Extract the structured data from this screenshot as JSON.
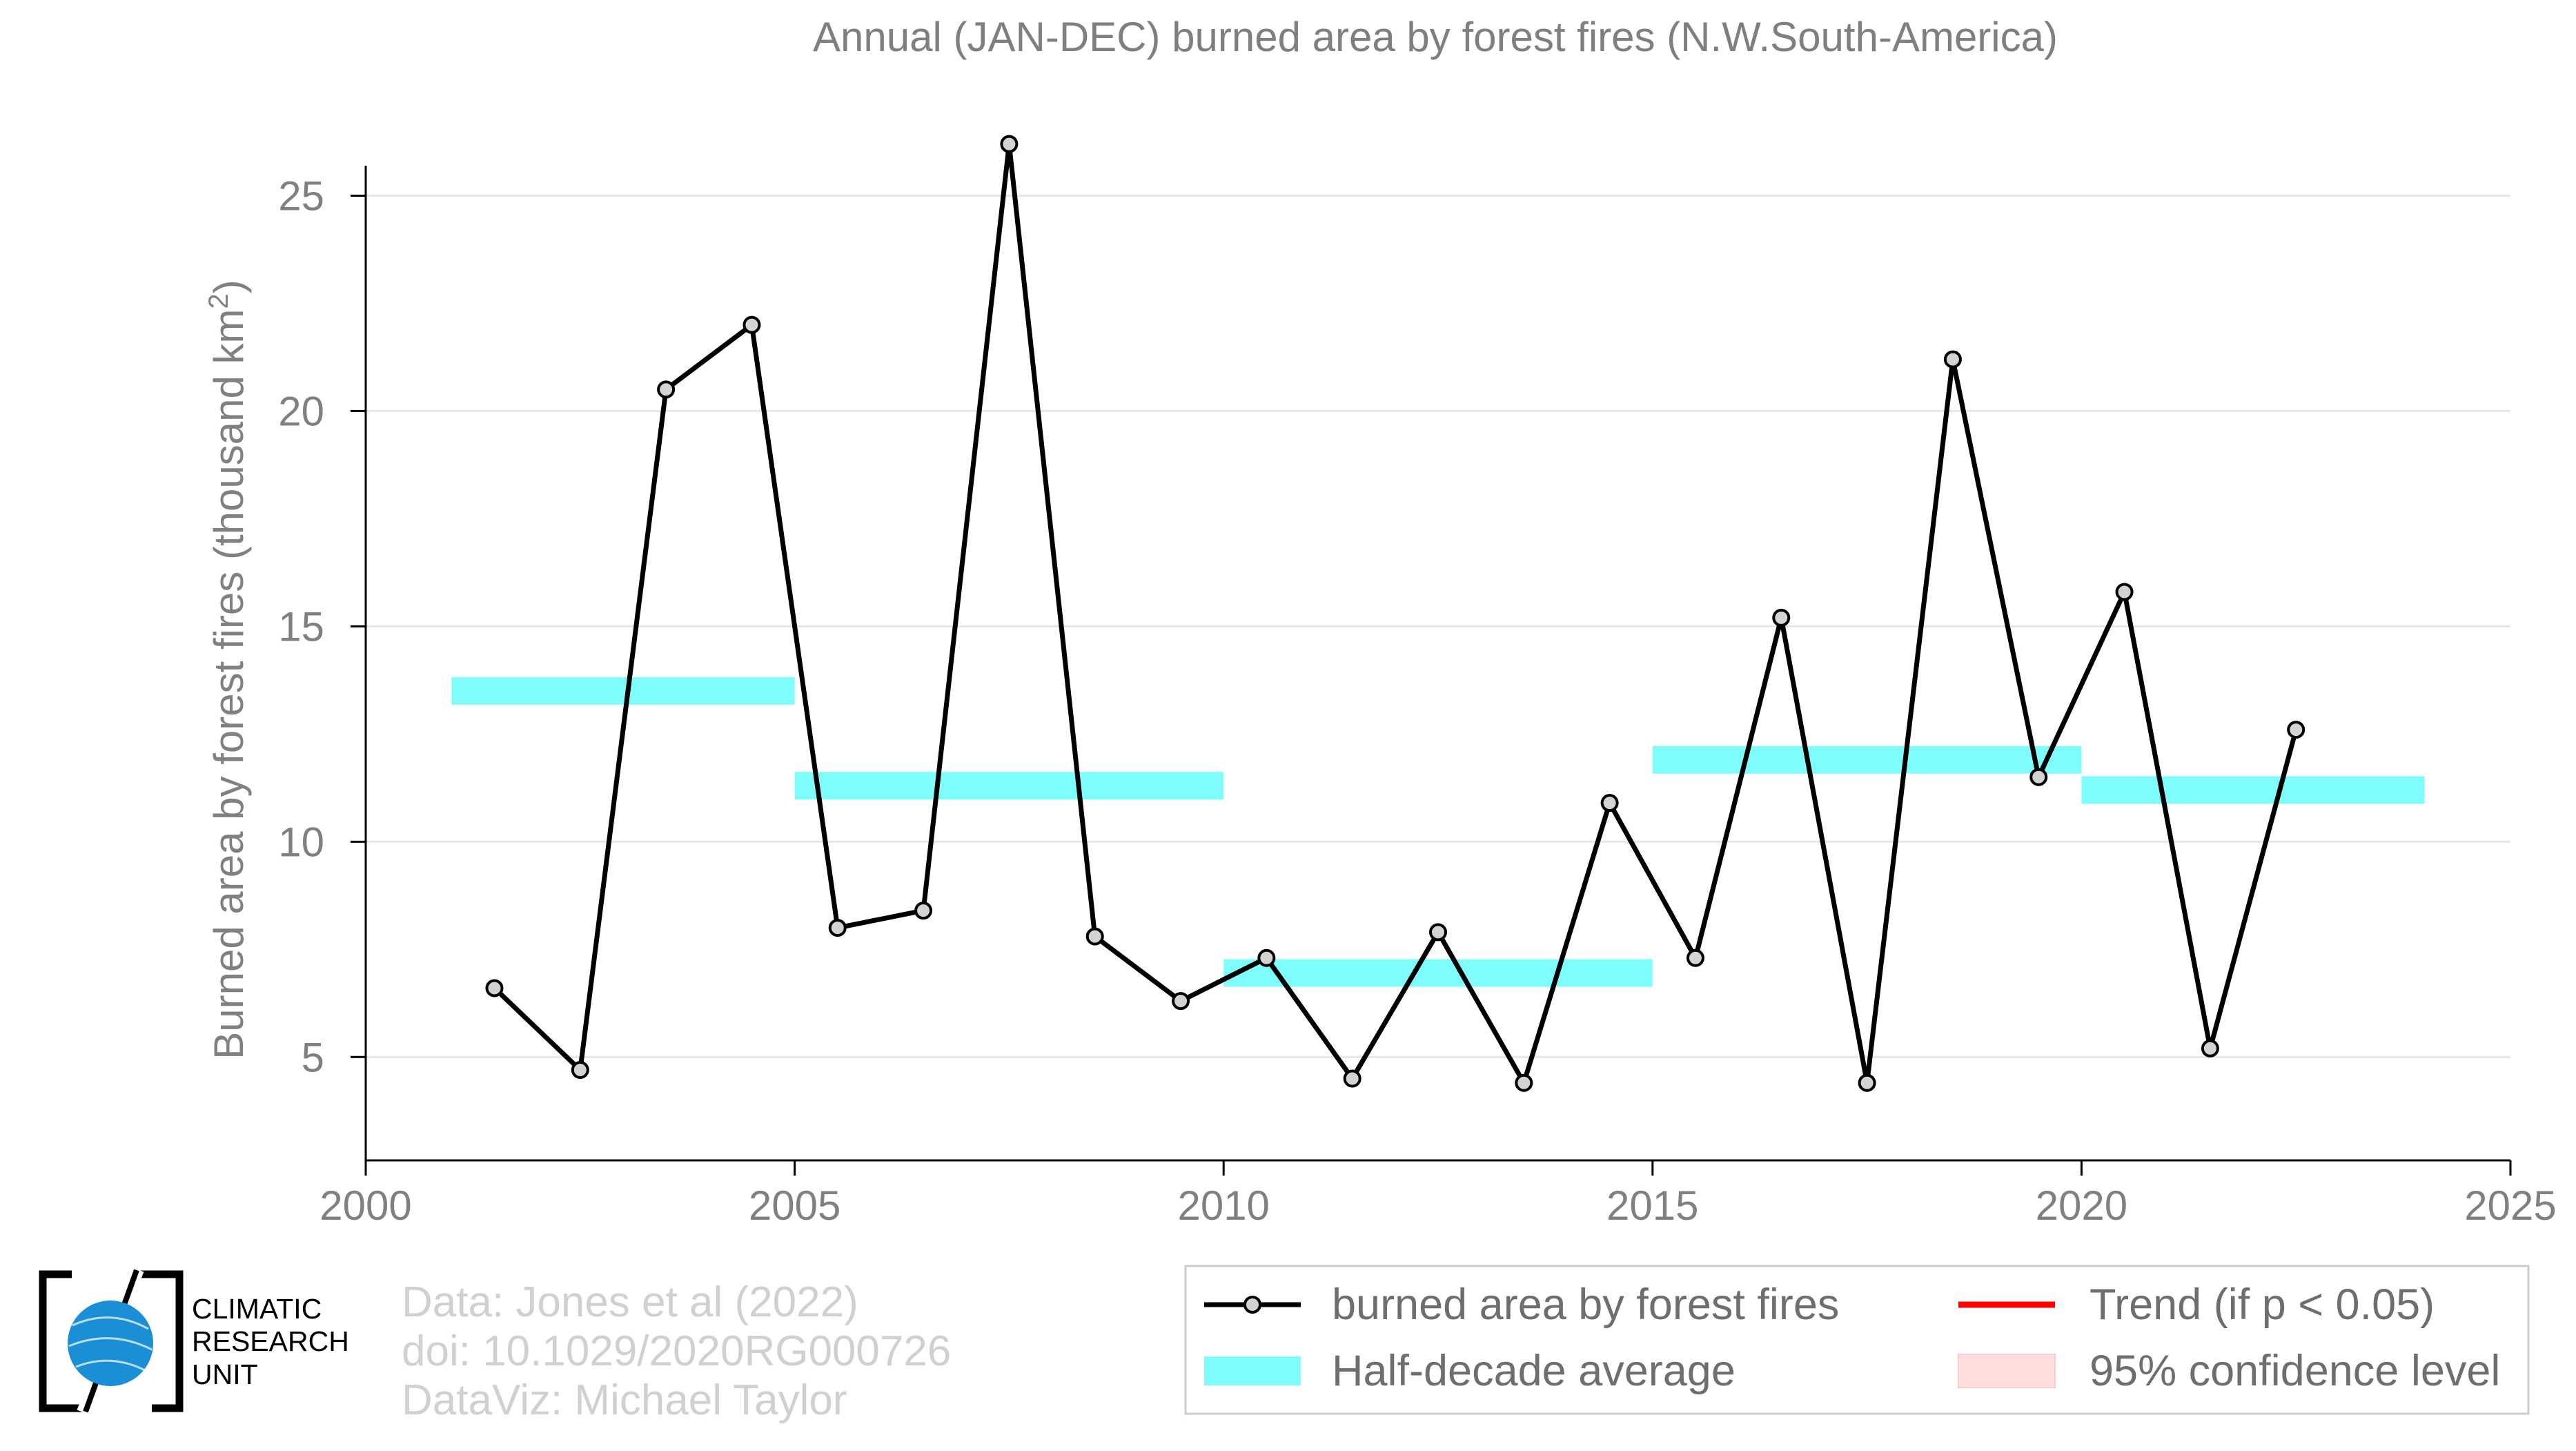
{
  "chart_data": {
    "type": "line",
    "title": "Annual (JAN-DEC) burned area by forest fires (N.W.South-America)",
    "ylabel_main": "Burned area by forest fires (thousand km",
    "ylabel_sup": "2",
    "ylabel_close": ")",
    "xlabel": "",
    "xlim": [
      2000,
      2025
    ],
    "ylim": [
      2.6,
      27.3
    ],
    "xticks": [
      "2000",
      "2005",
      "2010",
      "2015",
      "2020",
      "2025"
    ],
    "yticks": [
      "5",
      "10",
      "15",
      "20",
      "25"
    ],
    "ytick_values": [
      5,
      10,
      15,
      20,
      25
    ],
    "xtick_values": [
      2000,
      2005,
      2010,
      2015,
      2020,
      2025
    ],
    "grid": "horizontal",
    "legend_position": "bottom-right",
    "series": [
      {
        "name": "burned area by forest fires",
        "color": "#000000",
        "marker_fill": "#d3d3d3",
        "x": [
          2001.5,
          2002.5,
          2003.5,
          2004.5,
          2005.5,
          2006.5,
          2007.5,
          2008.5,
          2009.5,
          2010.5,
          2011.5,
          2012.5,
          2013.5,
          2014.5,
          2015.5,
          2016.5,
          2017.5,
          2018.5,
          2019.5,
          2020.5,
          2021.5,
          2022.5
        ],
        "values": [
          6.6,
          4.7,
          20.5,
          22.0,
          8.0,
          8.4,
          26.2,
          7.8,
          6.3,
          7.3,
          4.5,
          7.9,
          4.4,
          10.9,
          7.3,
          15.2,
          4.4,
          21.2,
          11.5,
          15.8,
          5.2,
          12.6
        ]
      },
      {
        "name": "Half-decade average",
        "color": "#7ffdfd",
        "segments": [
          {
            "x_start": 2001,
            "x_end": 2005,
            "value": 13.5
          },
          {
            "x_start": 2005,
            "x_end": 2010,
            "value": 11.3
          },
          {
            "x_start": 2010,
            "x_end": 2015,
            "value": 6.95
          },
          {
            "x_start": 2015,
            "x_end": 2020,
            "value": 11.9
          },
          {
            "x_start": 2020,
            "x_end": 2024,
            "value": 11.2
          }
        ]
      }
    ]
  },
  "legend": {
    "items": [
      {
        "label": "burned area by forest fires",
        "kind": "line-marker",
        "color": "#000000"
      },
      {
        "label": "Trend (if p < 0.05)",
        "kind": "line",
        "color": "#ff0000"
      },
      {
        "label": "Half-decade average",
        "kind": "band",
        "color": "#7ffdfd"
      },
      {
        "label": "95% confidence level",
        "kind": "band",
        "color": "#ffdddd"
      }
    ]
  },
  "credits": {
    "line1": "Data: Jones et al (2022)",
    "line2": "doi: 10.1029/2020RG000726",
    "line3": "DataViz: Michael Taylor"
  },
  "logo": {
    "line1": "CLIMATIC",
    "line2": "RESEARCH",
    "line3": "UNIT",
    "globe_color": "#1a8fd6"
  }
}
